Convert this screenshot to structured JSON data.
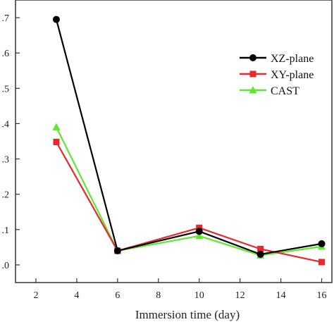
{
  "chart_data": {
    "type": "line",
    "xlabel": "Immersion time (day)",
    "ylabel": "",
    "xlim": [
      1,
      16.5
    ],
    "ylim": [
      -0.05,
      0.75
    ],
    "x_ticks": [
      2,
      4,
      6,
      8,
      10,
      12,
      14,
      16
    ],
    "x_tick_labels": [
      "2",
      "4",
      "6",
      "8",
      "10",
      "12",
      "14",
      "16"
    ],
    "y_ticks": [
      0.0,
      0.1,
      0.2,
      0.3,
      0.4,
      0.5,
      0.6,
      0.7
    ],
    "y_tick_labels": [
      ".0",
      ".1",
      ".2",
      ".3",
      ".4",
      ".5",
      ".6",
      ".7"
    ],
    "grid": false,
    "legend_position": "top-right",
    "series": [
      {
        "name": "XZ-plane",
        "color": "#000000",
        "marker": "circle",
        "x": [
          3,
          6,
          10,
          13,
          16
        ],
        "y": [
          0.695,
          0.04,
          0.095,
          0.03,
          0.06
        ]
      },
      {
        "name": "XY-plane",
        "color": "#e8282c",
        "marker": "square",
        "x": [
          3,
          6,
          10,
          13,
          16
        ],
        "y": [
          0.348,
          0.04,
          0.105,
          0.045,
          0.008
        ]
      },
      {
        "name": "CAST",
        "color": "#5ee830",
        "marker": "triangle",
        "x": [
          3,
          6,
          10,
          13,
          16
        ],
        "y": [
          0.39,
          0.04,
          0.082,
          0.027,
          0.052
        ]
      }
    ]
  }
}
